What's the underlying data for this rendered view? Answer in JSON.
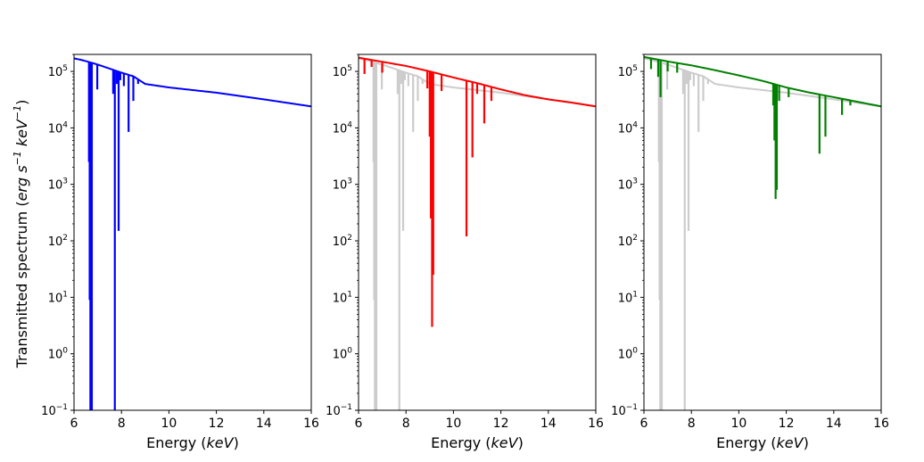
{
  "figure": {
    "ylabel_main": "Transmitted spectrum (",
    "ylabel_unit_erg": "erg s",
    "ylabel_exp1": "−1",
    "ylabel_unit_kev": " keV",
    "ylabel_exp2": "−1",
    "ylabel_close": ")"
  },
  "chart_data": [
    {
      "type": "line",
      "xlabel": "Energy (",
      "xlabel_unit": "keV",
      "xlabel_close": ")",
      "xlim": [
        6,
        16
      ],
      "ylim": [
        0.1,
        200000
      ],
      "yscale": "log",
      "xticks": [
        "6",
        "8",
        "10",
        "12",
        "14",
        "16"
      ],
      "yticks": [
        {
          "base": "10",
          "exp": "−1",
          "value": 0.1
        },
        {
          "base": "10",
          "exp": "0",
          "value": 1
        },
        {
          "base": "10",
          "exp": "1",
          "value": 10
        },
        {
          "base": "10",
          "exp": "2",
          "value": 100
        },
        {
          "base": "10",
          "exp": "3",
          "value": 1000
        },
        {
          "base": "10",
          "exp": "4",
          "value": 10000
        },
        {
          "base": "10",
          "exp": "5",
          "value": 100000
        }
      ],
      "series": [
        {
          "color": "#0000ff",
          "continuum": [
            [
              6.0,
              170000
            ],
            [
              6.3,
              160000
            ],
            [
              6.6,
              148000
            ],
            [
              7.0,
              132000
            ],
            [
              7.5,
              112000
            ],
            [
              8.0,
              95000
            ],
            [
              8.5,
              82000
            ],
            [
              9.0,
              60000
            ],
            [
              10,
              52000
            ],
            [
              12,
              42000
            ],
            [
              14,
              32000
            ],
            [
              16,
              24000
            ]
          ],
          "lines": [
            [
              6.63,
              2500
            ],
            [
              6.66,
              9
            ],
            [
              6.69,
              0.05
            ],
            [
              6.72,
              0.05
            ],
            [
              6.75,
              0.05
            ],
            [
              6.98,
              48000
            ],
            [
              7.65,
              40000
            ],
            [
              7.72,
              0.05
            ],
            [
              7.8,
              60000
            ],
            [
              7.88,
              150
            ],
            [
              7.95,
              70000
            ],
            [
              8.1,
              55000
            ],
            [
              8.3,
              8500
            ],
            [
              8.5,
              30000
            ],
            [
              8.7,
              60000
            ]
          ]
        }
      ]
    },
    {
      "type": "line",
      "xlabel": "Energy (",
      "xlabel_unit": "keV",
      "xlabel_close": ")",
      "xlim": [
        6,
        16
      ],
      "ylim": [
        0.1,
        200000
      ],
      "yscale": "log",
      "xticks": [
        "6",
        "8",
        "10",
        "12",
        "14",
        "16"
      ],
      "yticks": [
        {
          "base": "10",
          "exp": "−1",
          "value": 0.1
        },
        {
          "base": "10",
          "exp": "0",
          "value": 1
        },
        {
          "base": "10",
          "exp": "1",
          "value": 10
        },
        {
          "base": "10",
          "exp": "2",
          "value": 100
        },
        {
          "base": "10",
          "exp": "3",
          "value": 1000
        },
        {
          "base": "10",
          "exp": "4",
          "value": 10000
        },
        {
          "base": "10",
          "exp": "5",
          "value": 100000
        }
      ],
      "series": [
        {
          "color": "#cccccc",
          "continuum": [
            [
              6.0,
              170000
            ],
            [
              6.3,
              160000
            ],
            [
              6.6,
              148000
            ],
            [
              7.0,
              132000
            ],
            [
              7.5,
              112000
            ],
            [
              8.0,
              95000
            ],
            [
              8.5,
              82000
            ],
            [
              9.0,
              60000
            ],
            [
              10,
              52000
            ],
            [
              12,
              42000
            ],
            [
              14,
              32000
            ],
            [
              16,
              24000
            ]
          ],
          "lines": [
            [
              6.63,
              2500
            ],
            [
              6.66,
              9
            ],
            [
              6.69,
              0.05
            ],
            [
              6.72,
              0.05
            ],
            [
              6.75,
              0.05
            ],
            [
              6.98,
              48000
            ],
            [
              7.65,
              40000
            ],
            [
              7.72,
              0.05
            ],
            [
              7.8,
              60000
            ],
            [
              7.88,
              150
            ],
            [
              7.95,
              70000
            ],
            [
              8.1,
              55000
            ],
            [
              8.3,
              8500
            ],
            [
              8.5,
              30000
            ],
            [
              8.7,
              60000
            ]
          ]
        },
        {
          "color": "#ff0000",
          "continuum": [
            [
              6.0,
              175000
            ],
            [
              7,
              148000
            ],
            [
              8,
              125000
            ],
            [
              9,
              100000
            ],
            [
              10,
              78000
            ],
            [
              11,
              62000
            ],
            [
              12,
              48000
            ],
            [
              13,
              38000
            ],
            [
              14,
              32000
            ],
            [
              15,
              28000
            ],
            [
              16,
              24000
            ]
          ],
          "lines": [
            [
              6.25,
              90000
            ],
            [
              6.55,
              120000
            ],
            [
              7.0,
              95000
            ],
            [
              8.9,
              50000
            ],
            [
              9.0,
              7000
            ],
            [
              9.05,
              250
            ],
            [
              9.1,
              3
            ],
            [
              9.15,
              25
            ],
            [
              9.5,
              45000
            ],
            [
              10.55,
              120
            ],
            [
              10.8,
              3000
            ],
            [
              11.0,
              40000
            ],
            [
              11.3,
              12000
            ],
            [
              11.6,
              30000
            ],
            [
              11.9,
              48000
            ]
          ]
        }
      ]
    },
    {
      "type": "line",
      "xlabel": "Energy (",
      "xlabel_unit": "keV",
      "xlabel_close": ")",
      "xlim": [
        6,
        16
      ],
      "ylim": [
        0.1,
        200000
      ],
      "yscale": "log",
      "xticks": [
        "6",
        "8",
        "10",
        "12",
        "14",
        "16"
      ],
      "yticks": [
        {
          "base": "10",
          "exp": "−1",
          "value": 0.1
        },
        {
          "base": "10",
          "exp": "0",
          "value": 1
        },
        {
          "base": "10",
          "exp": "1",
          "value": 10
        },
        {
          "base": "10",
          "exp": "2",
          "value": 100
        },
        {
          "base": "10",
          "exp": "3",
          "value": 1000
        },
        {
          "base": "10",
          "exp": "4",
          "value": 10000
        },
        {
          "base": "10",
          "exp": "5",
          "value": 100000
        }
      ],
      "series": [
        {
          "color": "#cccccc",
          "continuum": [
            [
              6.0,
              170000
            ],
            [
              6.3,
              160000
            ],
            [
              6.6,
              148000
            ],
            [
              7.0,
              132000
            ],
            [
              7.5,
              112000
            ],
            [
              8.0,
              95000
            ],
            [
              8.5,
              82000
            ],
            [
              9.0,
              60000
            ],
            [
              10,
              52000
            ],
            [
              12,
              42000
            ],
            [
              14,
              32000
            ],
            [
              16,
              24000
            ]
          ],
          "lines": [
            [
              6.63,
              2500
            ],
            [
              6.66,
              9
            ],
            [
              6.69,
              0.05
            ],
            [
              6.72,
              0.05
            ],
            [
              6.75,
              0.05
            ],
            [
              6.98,
              48000
            ],
            [
              7.65,
              40000
            ],
            [
              7.72,
              0.05
            ],
            [
              7.8,
              60000
            ],
            [
              7.88,
              150
            ],
            [
              7.95,
              70000
            ],
            [
              8.1,
              55000
            ],
            [
              8.3,
              8500
            ],
            [
              8.5,
              30000
            ],
            [
              8.7,
              60000
            ]
          ]
        },
        {
          "color": "#008000",
          "continuum": [
            [
              6.0,
              180000
            ],
            [
              7,
              150000
            ],
            [
              8,
              128000
            ],
            [
              9,
              105000
            ],
            [
              10,
              85000
            ],
            [
              11,
              68000
            ],
            [
              12,
              52000
            ],
            [
              13,
              42000
            ],
            [
              14,
              35000
            ],
            [
              15,
              29000
            ],
            [
              16,
              24000
            ]
          ],
          "lines": [
            [
              6.3,
              110000
            ],
            [
              6.6,
              80000
            ],
            [
              6.7,
              35000
            ],
            [
              7.0,
              100000
            ],
            [
              7.4,
              95000
            ],
            [
              11.45,
              25000
            ],
            [
              11.5,
              6000
            ],
            [
              11.55,
              550
            ],
            [
              11.6,
              800
            ],
            [
              11.7,
              30000
            ],
            [
              12.1,
              35000
            ],
            [
              13.4,
              3500
            ],
            [
              13.65,
              7000
            ],
            [
              14.35,
              17000
            ],
            [
              14.7,
              25000
            ]
          ]
        }
      ]
    }
  ]
}
